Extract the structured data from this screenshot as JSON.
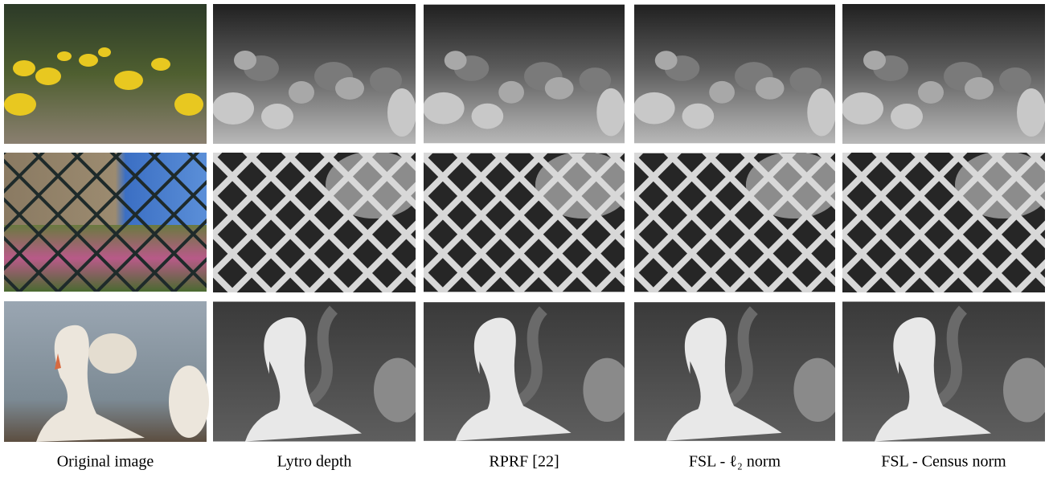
{
  "captions": [
    "Original image",
    "Lytro depth",
    "RPRF [22]",
    "FSL - ℓ₂ norm",
    "FSL - Census norm"
  ]
}
